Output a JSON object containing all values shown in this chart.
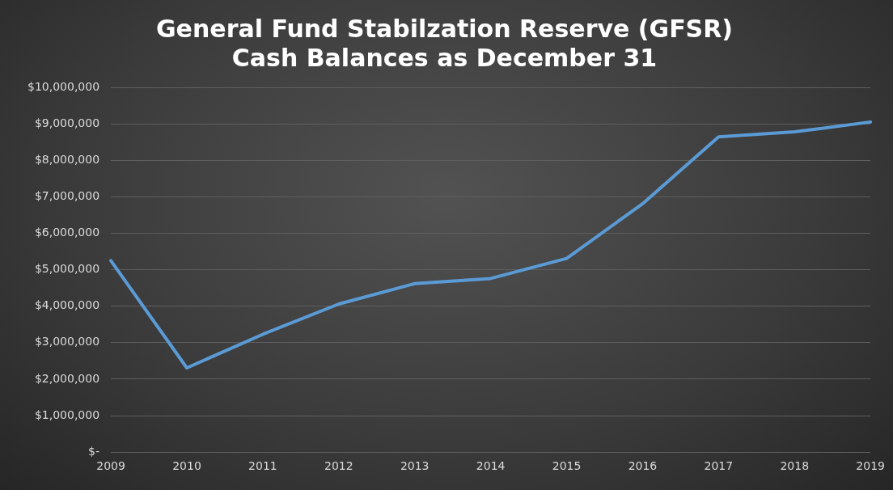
{
  "chart_data": {
    "type": "line",
    "title": "General Fund Stabilzation Reserve (GFSR)\nCash Balances as December 31",
    "categories": [
      "2009",
      "2010",
      "2011",
      "2012",
      "2013",
      "2014",
      "2015",
      "2016",
      "2017",
      "2018",
      "2019"
    ],
    "series": [
      {
        "color": "#5b9bd5",
        "values": [
          5250000,
          2310000,
          3230000,
          4060000,
          4620000,
          4760000,
          5310000,
          6810000,
          8640000,
          8780000,
          9050000
        ]
      }
    ],
    "ylim": [
      0,
      10000000
    ],
    "yticks": [
      {
        "value": 0,
        "label": "$-"
      },
      {
        "value": 1000000,
        "label": "$1,000,000"
      },
      {
        "value": 2000000,
        "label": "$2,000,000"
      },
      {
        "value": 3000000,
        "label": "$3,000,000"
      },
      {
        "value": 4000000,
        "label": "$4,000,000"
      },
      {
        "value": 5000000,
        "label": "$5,000,000"
      },
      {
        "value": 6000000,
        "label": "$6,000,000"
      },
      {
        "value": 7000000,
        "label": "$7,000,000"
      },
      {
        "value": 8000000,
        "label": "$8,000,000"
      },
      {
        "value": 9000000,
        "label": "$9,000,000"
      },
      {
        "value": 10000000,
        "label": "$10,000,000"
      }
    ],
    "grid": "y",
    "legend": false,
    "marker": "none",
    "line_style": "solid"
  }
}
